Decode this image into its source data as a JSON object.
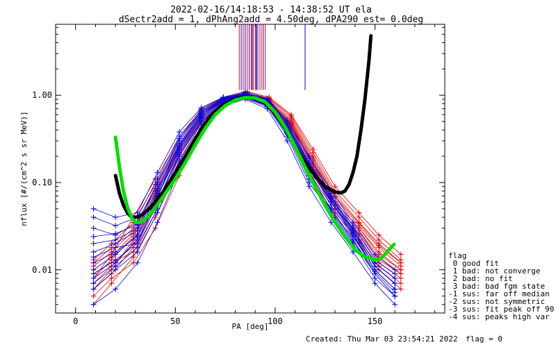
{
  "title_line1": "2022-02-16/14:18:53 - 14:38:52 UT ela",
  "title_line2": "dSectr2add = 1, dPhAng2add = 4.50deg, dPA290_est=   0.0deg",
  "footer": {
    "created": "Created: Thu Mar 03 23:54:21 2022",
    "flag": "flag = 0"
  },
  "legend": {
    "title": "flag",
    "entries": [
      " 0 good fit",
      " 1 bad: not converge",
      " 2 bad: no fit",
      " 3 bad: bad fgm state",
      "-1 sus: far off median",
      "-2 sus: not symmetric",
      "-3 sus: fit peak off 90",
      "-4 sus: peaks high var"
    ]
  },
  "chart_data": {
    "type": "line",
    "xlabel": "PA [deg]",
    "ylabel": "nflux [#/(cm^2 s sr MeV)]",
    "xlim": [
      -10,
      185
    ],
    "ylim": [
      0.0032,
      6.5
    ],
    "ylog": true,
    "xticks": [
      0,
      50,
      100,
      150
    ],
    "xtick_labels": [
      "0",
      "50",
      "100",
      "150"
    ],
    "yticks": [
      0.01,
      0.1,
      1.0
    ],
    "ytick_labels": [
      "0.01",
      "0.10",
      "1.00"
    ],
    "colors": {
      "red": "#e00000",
      "blue": "#0000e0",
      "black": "#000000",
      "green": "#00e000"
    },
    "red_x": [
      9,
      18,
      29,
      40,
      52,
      63,
      74,
      86,
      97,
      108,
      119,
      130,
      142,
      152,
      163
    ],
    "blue_x": [
      9,
      20,
      31,
      41,
      52,
      63,
      74,
      85,
      96,
      106,
      117,
      128,
      139,
      150,
      160
    ],
    "red_series": [
      [
        0.009,
        0.012,
        0.016,
        0.045,
        0.18,
        0.48,
        0.85,
        0.95,
        0.8,
        0.42,
        0.14,
        0.05,
        0.025,
        0.012,
        0.008
      ],
      [
        0.006,
        0.01,
        0.022,
        0.065,
        0.22,
        0.55,
        0.88,
        1.0,
        0.85,
        0.48,
        0.17,
        0.06,
        0.03,
        0.015,
        0.01
      ],
      [
        0.012,
        0.018,
        0.03,
        0.085,
        0.28,
        0.62,
        0.92,
        1.05,
        0.9,
        0.55,
        0.2,
        0.075,
        0.035,
        0.02,
        0.012
      ],
      [
        0.008,
        0.015,
        0.04,
        0.11,
        0.32,
        0.7,
        0.95,
        1.1,
        0.95,
        0.6,
        0.24,
        0.09,
        0.045,
        0.025,
        0.015
      ],
      [
        0.005,
        0.008,
        0.012,
        0.03,
        0.12,
        0.4,
        0.75,
        0.92,
        0.75,
        0.38,
        0.11,
        0.04,
        0.02,
        0.01,
        0.006
      ],
      [
        0.007,
        0.011,
        0.02,
        0.055,
        0.2,
        0.52,
        0.82,
        0.98,
        0.82,
        0.44,
        0.15,
        0.055,
        0.028,
        0.014,
        0.009
      ],
      [
        0.01,
        0.014,
        0.026,
        0.075,
        0.25,
        0.58,
        0.9,
        1.02,
        0.88,
        0.5,
        0.18,
        0.068,
        0.032,
        0.018,
        0.011
      ],
      [
        0.004,
        0.007,
        0.014,
        0.04,
        0.15,
        0.45,
        0.8,
        0.95,
        0.78,
        0.4,
        0.13,
        0.045,
        0.022,
        0.011,
        0.007
      ],
      [
        0.013,
        0.02,
        0.035,
        0.095,
        0.3,
        0.66,
        0.93,
        1.08,
        0.92,
        0.58,
        0.22,
        0.08,
        0.04,
        0.022,
        0.013
      ],
      [
        0.006,
        0.009,
        0.018,
        0.05,
        0.17,
        0.5,
        0.84,
        0.96,
        0.8,
        0.46,
        0.16,
        0.05,
        0.026,
        0.013,
        0.009
      ],
      [
        0.011,
        0.016,
        0.028,
        0.08,
        0.26,
        0.6,
        0.9,
        1.04,
        0.86,
        0.52,
        0.19,
        0.07,
        0.034,
        0.019,
        0.012
      ],
      [
        0.008,
        0.013,
        0.024,
        0.07,
        0.23,
        0.56,
        0.86,
        1.0,
        0.84,
        0.47,
        0.16,
        0.06,
        0.03,
        0.016,
        0.01
      ]
    ],
    "blue_series": [
      [
        0.014,
        0.018,
        0.02,
        0.07,
        0.25,
        0.58,
        0.88,
        0.98,
        0.82,
        0.4,
        0.14,
        0.06,
        0.025,
        0.01,
        0.006
      ],
      [
        0.03,
        0.025,
        0.035,
        0.1,
        0.32,
        0.66,
        0.92,
        1.05,
        0.88,
        0.48,
        0.17,
        0.07,
        0.03,
        0.012,
        0.008
      ],
      [
        0.05,
        0.04,
        0.045,
        0.13,
        0.38,
        0.72,
        0.95,
        1.1,
        0.92,
        0.52,
        0.2,
        0.08,
        0.035,
        0.015,
        0.01
      ],
      [
        0.008,
        0.012,
        0.022,
        0.06,
        0.22,
        0.54,
        0.85,
        0.96,
        0.78,
        0.38,
        0.12,
        0.05,
        0.022,
        0.009,
        0.005
      ],
      [
        0.006,
        0.01,
        0.016,
        0.045,
        0.18,
        0.48,
        0.8,
        0.92,
        0.74,
        0.34,
        0.1,
        0.045,
        0.02,
        0.008,
        0.005
      ],
      [
        0.02,
        0.022,
        0.03,
        0.085,
        0.28,
        0.62,
        0.9,
        1.02,
        0.86,
        0.44,
        0.16,
        0.065,
        0.028,
        0.011,
        0.007
      ],
      [
        0.01,
        0.015,
        0.025,
        0.075,
        0.26,
        0.6,
        0.88,
        1.0,
        0.84,
        0.42,
        0.15,
        0.06,
        0.026,
        0.01,
        0.006
      ],
      [
        0.004,
        0.006,
        0.012,
        0.035,
        0.14,
        0.42,
        0.76,
        0.9,
        0.7,
        0.3,
        0.09,
        0.035,
        0.016,
        0.007,
        0.004
      ],
      [
        0.04,
        0.032,
        0.04,
        0.11,
        0.34,
        0.68,
        0.94,
        1.06,
        0.9,
        0.5,
        0.19,
        0.075,
        0.032,
        0.013,
        0.009
      ],
      [
        0.007,
        0.011,
        0.018,
        0.05,
        0.2,
        0.5,
        0.82,
        0.94,
        0.76,
        0.36,
        0.11,
        0.048,
        0.021,
        0.009,
        0.005
      ],
      [
        0.016,
        0.02,
        0.028,
        0.08,
        0.27,
        0.6,
        0.89,
        1.01,
        0.85,
        0.43,
        0.155,
        0.062,
        0.027,
        0.011,
        0.007
      ],
      [
        0.024,
        0.026,
        0.033,
        0.095,
        0.3,
        0.64,
        0.91,
        1.03,
        0.87,
        0.46,
        0.165,
        0.068,
        0.029,
        0.012,
        0.008
      ],
      [
        0.012,
        0.016,
        0.024,
        0.068,
        0.24,
        0.56,
        0.86,
        0.97,
        0.8,
        0.39,
        0.13,
        0.055,
        0.024,
        0.01,
        0.006
      ],
      [
        0.009,
        0.013,
        0.02,
        0.058,
        0.21,
        0.52,
        0.83,
        0.95,
        0.77,
        0.37,
        0.12,
        0.05,
        0.022,
        0.0095,
        0.0055
      ]
    ],
    "fit_black": {
      "x": [
        20,
        22,
        24,
        26,
        28,
        30,
        32,
        34,
        36,
        38,
        40,
        45,
        50,
        55,
        60,
        65,
        70,
        75,
        80,
        85,
        90,
        95,
        100,
        105,
        110,
        115,
        120,
        125,
        130,
        133,
        135,
        137,
        139,
        141,
        143,
        145,
        147,
        148
      ],
      "y": [
        0.12,
        0.075,
        0.055,
        0.045,
        0.04,
        0.04,
        0.041,
        0.044,
        0.048,
        0.053,
        0.06,
        0.085,
        0.13,
        0.2,
        0.32,
        0.48,
        0.65,
        0.8,
        0.9,
        0.95,
        0.92,
        0.82,
        0.62,
        0.42,
        0.26,
        0.17,
        0.12,
        0.09,
        0.078,
        0.076,
        0.08,
        0.095,
        0.13,
        0.2,
        0.4,
        0.9,
        2.5,
        4.8
      ]
    },
    "fit_green": {
      "x": [
        20,
        22,
        24,
        26,
        28,
        30,
        32,
        34,
        36,
        38,
        40,
        45,
        50,
        55,
        60,
        65,
        70,
        75,
        80,
        85,
        90,
        95,
        100,
        105,
        110,
        115,
        120,
        125,
        130,
        135,
        140,
        145,
        150,
        153,
        155,
        157,
        160
      ],
      "y": [
        0.33,
        0.15,
        0.08,
        0.052,
        0.04,
        0.035,
        0.035,
        0.037,
        0.04,
        0.045,
        0.052,
        0.075,
        0.11,
        0.17,
        0.27,
        0.42,
        0.6,
        0.76,
        0.88,
        0.94,
        0.93,
        0.84,
        0.64,
        0.43,
        0.26,
        0.15,
        0.09,
        0.055,
        0.035,
        0.024,
        0.017,
        0.014,
        0.013,
        0.0135,
        0.015,
        0.017,
        0.02
      ]
    },
    "vlines_red": [
      82,
      84,
      86,
      88,
      89,
      90,
      92,
      93,
      95
    ],
    "vlines_blue": [
      83,
      85,
      87,
      88.5,
      90.5,
      91,
      94,
      115
    ],
    "vline_bottom": 1.15
  }
}
